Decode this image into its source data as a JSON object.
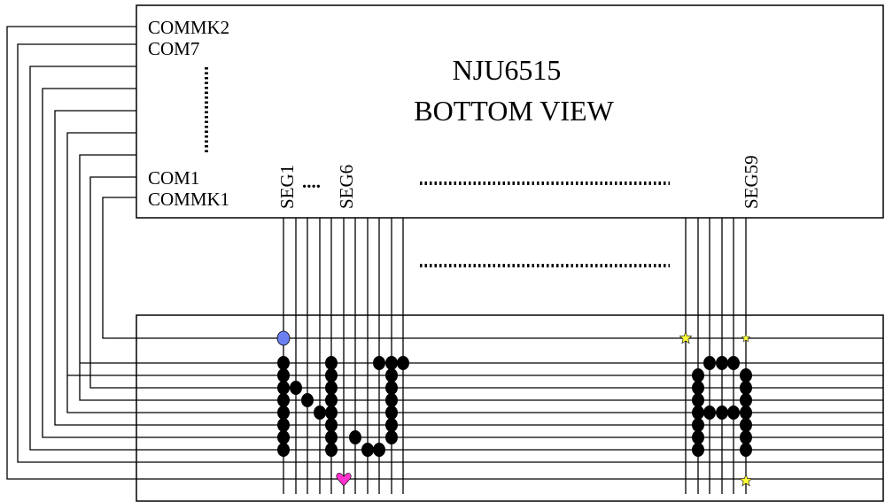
{
  "chip": {
    "title": "NJU6515",
    "subtitle": "BOTTOM VIEW"
  },
  "com_labels": {
    "top1": "COMMK2",
    "top2": "COM7",
    "bottom1": "COM1",
    "bottom2": "COMMK1"
  },
  "seg_labels": {
    "seg1": "SEG1",
    "dots": "....",
    "seg6": "SEG6",
    "seg59": "SEG59"
  },
  "glyphs": {
    "left": "NJ",
    "right": "A"
  },
  "markers": {
    "circle_color": "#6b7ff0",
    "heart_color": "#ff33cc",
    "star_color": "#ffff33"
  }
}
